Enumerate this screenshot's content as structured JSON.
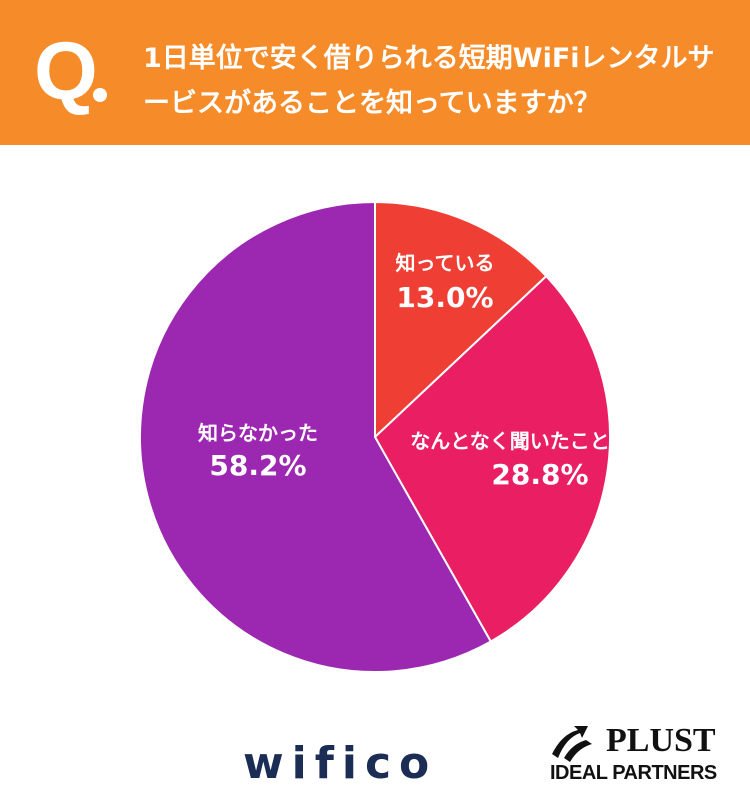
{
  "header": {
    "q_mark": "Q",
    "question": "1日単位で安く借りられる短期WiFiレンタルサービスがあることを知っていますか？"
  },
  "chart_data": {
    "type": "pie",
    "start": "top",
    "direction": "clockwise",
    "slices": [
      {
        "label": "知っている",
        "value": 13.0,
        "display": "13.0%",
        "color": "#ef3f35"
      },
      {
        "label": "なんとなく聞いたことがある",
        "value": 28.8,
        "display": "28.8%",
        "color": "#e91e63"
      },
      {
        "label": "知らなかった",
        "value": 58.2,
        "display": "58.2%",
        "color": "#9c27b0"
      }
    ]
  },
  "logos": {
    "wifico": "wifico",
    "plust": "PLUST",
    "plust_sub": "IDEAL PARTNERS"
  }
}
